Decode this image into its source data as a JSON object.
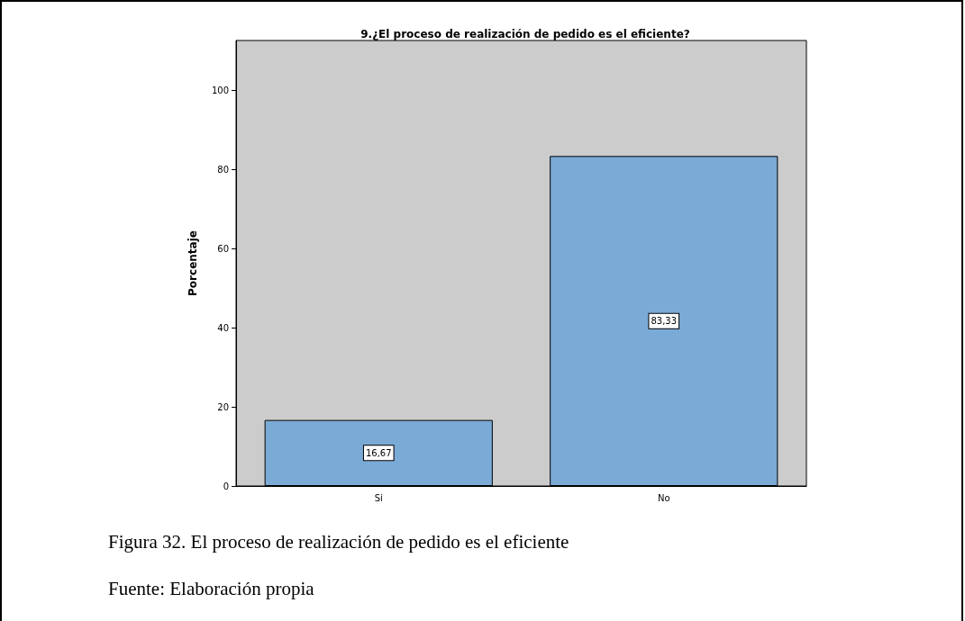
{
  "chart_data": {
    "type": "bar",
    "title": "9.¿El proceso de realización de pedido es el eficiente?",
    "ylabel": "Porcentaje",
    "categories": [
      "Si",
      "No"
    ],
    "values": [
      16.67,
      83.33
    ],
    "value_labels": [
      "16,67",
      "83,33"
    ],
    "color": "#7aaad6",
    "ylim": [
      0,
      112.5
    ],
    "yticks": [
      0,
      20,
      40,
      60,
      80,
      100
    ],
    "grid": false,
    "annotations": [
      "Figura 32. El proceso de realización de pedido es el eficiente",
      "Fuente: Elaboración propia"
    ]
  }
}
